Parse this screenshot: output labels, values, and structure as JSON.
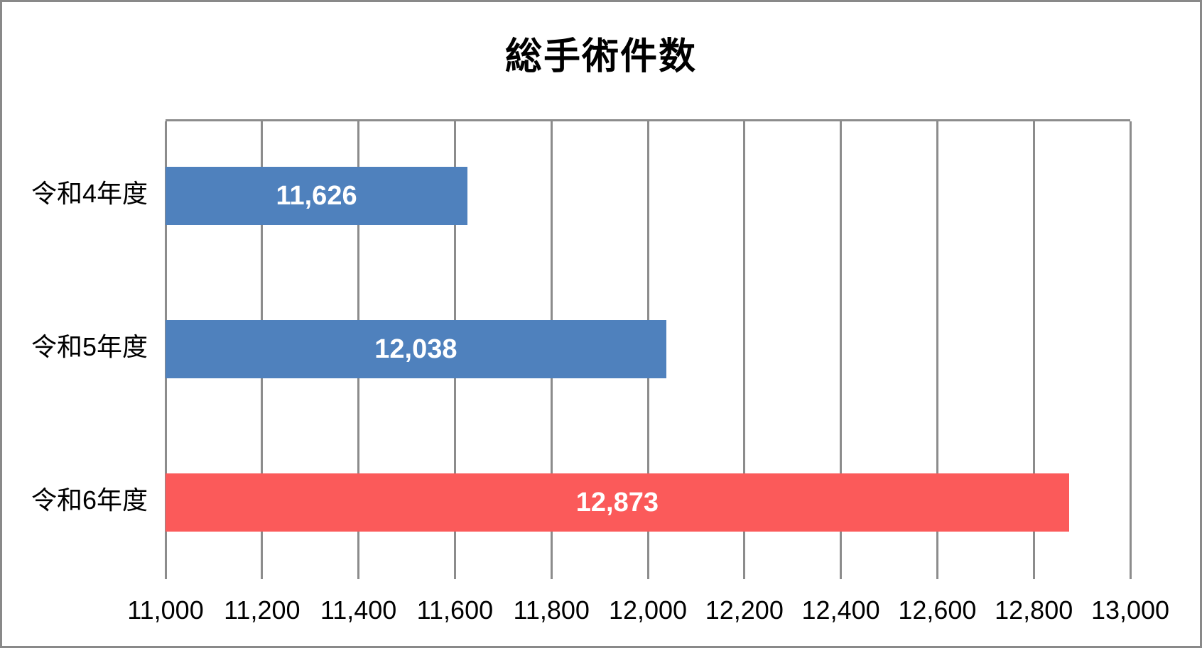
{
  "title": "総手術件数",
  "colors": {
    "background": "#FFFFFF",
    "canvas_border": "#898989",
    "gridline": "#8C8C8C",
    "blue_bar": "#4F81BD",
    "red_bar": "#FB5A5A",
    "data_label_text": "#FFFFFF",
    "axis_text": "#000000"
  },
  "chart_data": {
    "type": "bar",
    "orientation": "horizontal",
    "title": "総手術件数",
    "categories": [
      "令和4年度",
      "令和5年度",
      "令和6年度"
    ],
    "values": [
      11626,
      12038,
      12873
    ],
    "data_labels": [
      "11,626",
      "12,038",
      "12,873"
    ],
    "bar_colors": [
      "#4F81BD",
      "#4F81BD",
      "#FB5A5A"
    ],
    "xlim": [
      11000,
      13000
    ],
    "xtick_step": 200,
    "xticks": [
      11000,
      11200,
      11400,
      11600,
      11800,
      12000,
      12200,
      12400,
      12600,
      12800,
      13000
    ],
    "xtick_labels": [
      "11,000",
      "11,200",
      "11,400",
      "11,600",
      "11,800",
      "12,000",
      "12,200",
      "12,400",
      "12,600",
      "12,800",
      "13,000"
    ],
    "grid": true,
    "legend": "none",
    "xlabel": "",
    "ylabel": ""
  }
}
